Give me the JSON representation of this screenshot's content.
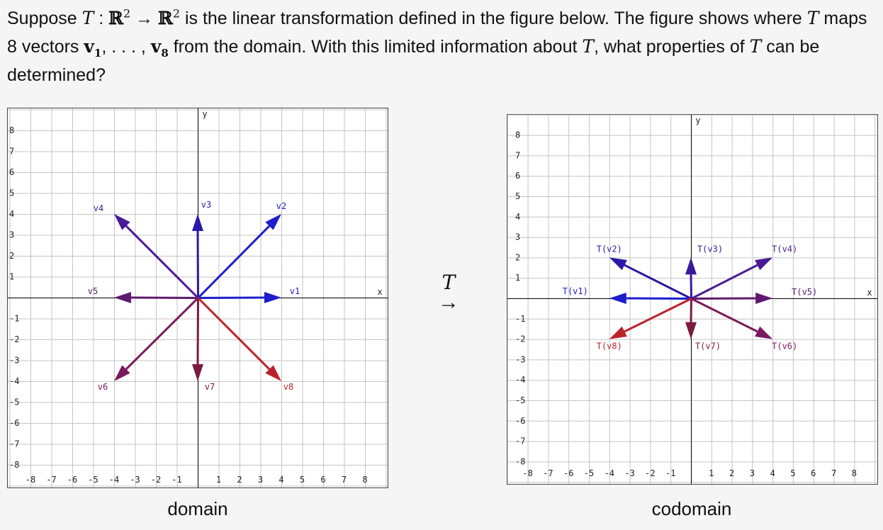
{
  "question": {
    "p1": "Suppose ",
    "T": "T",
    "colon": " : ",
    "R": "ℝ",
    "exp2": "2",
    "maps_arrow": " → ",
    "p2": " is the linear transformation defined in the figure below. The figure shows where ",
    "p3": " maps 8 vectors ",
    "v": "v",
    "sub1": "1",
    "dots": ", . . . , ",
    "sub8": "8",
    "p4": " from the domain. With this limited information about ",
    "p5": ", what properties of ",
    "p6": " can be determined?"
  },
  "arrow": {
    "label": "T",
    "symbol": "→"
  },
  "domain": {
    "caption": "domain",
    "axis_x_label": "x",
    "axis_y_label": "y",
    "xlim": [
      -8,
      8
    ],
    "ylim": [
      -8,
      8
    ],
    "x_ticks": [
      "-8",
      "-7",
      "-6",
      "-5",
      "-4",
      "-3",
      "-2",
      "-1",
      "1",
      "2",
      "3",
      "4",
      "5",
      "6",
      "7",
      "8"
    ],
    "y_ticks": [
      "8",
      "7",
      "6",
      "5",
      "4",
      "3",
      "2",
      "1",
      "-1",
      "-2",
      "-3",
      "-4",
      "-5",
      "-6",
      "-7",
      "-8"
    ],
    "vectors": [
      {
        "label": "v1",
        "x": 4,
        "y": 0,
        "color": "#1d1dcc"
      },
      {
        "label": "v2",
        "x": 4,
        "y": 4,
        "color": "#1d1dcc"
      },
      {
        "label": "v3",
        "x": 0,
        "y": 4,
        "color": "#2a1aa8"
      },
      {
        "label": "v4",
        "x": -4,
        "y": 4,
        "color": "#4a1a96"
      },
      {
        "label": "v5",
        "x": -4,
        "y": 0,
        "color": "#5e1a6e"
      },
      {
        "label": "v6",
        "x": -4,
        "y": -4,
        "color": "#7a1a5e"
      },
      {
        "label": "v7",
        "x": 0,
        "y": -4,
        "color": "#7a1c3e"
      },
      {
        "label": "v8",
        "x": 4,
        "y": -4,
        "color": "#b8242a"
      }
    ]
  },
  "codomain": {
    "caption": "codomain",
    "axis_x_label": "x",
    "axis_y_label": "y",
    "xlim": [
      -8,
      8
    ],
    "ylim": [
      -8,
      8
    ],
    "x_ticks": [
      "-8",
      "-7",
      "-6",
      "-5",
      "-4",
      "-3",
      "-2",
      "-1",
      "1",
      "2",
      "3",
      "4",
      "5",
      "6",
      "7",
      "8"
    ],
    "y_ticks": [
      "8",
      "7",
      "6",
      "5",
      "4",
      "3",
      "2",
      "1",
      "-1",
      "-2",
      "-3",
      "-4",
      "-5",
      "-6",
      "-7",
      "-8"
    ],
    "vectors": [
      {
        "label": "T(v1)",
        "x": -4,
        "y": 0,
        "color": "#1d1dcc"
      },
      {
        "label": "T(v2)",
        "x": -4,
        "y": 2,
        "color": "#2a1aa8"
      },
      {
        "label": "T(v3)",
        "x": 0,
        "y": 2,
        "color": "#3a1a9a"
      },
      {
        "label": "T(v4)",
        "x": 4,
        "y": 2,
        "color": "#4a1a96"
      },
      {
        "label": "T(v5)",
        "x": 4,
        "y": 0,
        "color": "#5e1a6e"
      },
      {
        "label": "T(v6)",
        "x": 4,
        "y": -2,
        "color": "#7a1a5e"
      },
      {
        "label": "T(v7)",
        "x": 0,
        "y": -2,
        "color": "#7a1c3e"
      },
      {
        "label": "T(v8)",
        "x": -4,
        "y": -2,
        "color": "#b8242a"
      }
    ]
  }
}
